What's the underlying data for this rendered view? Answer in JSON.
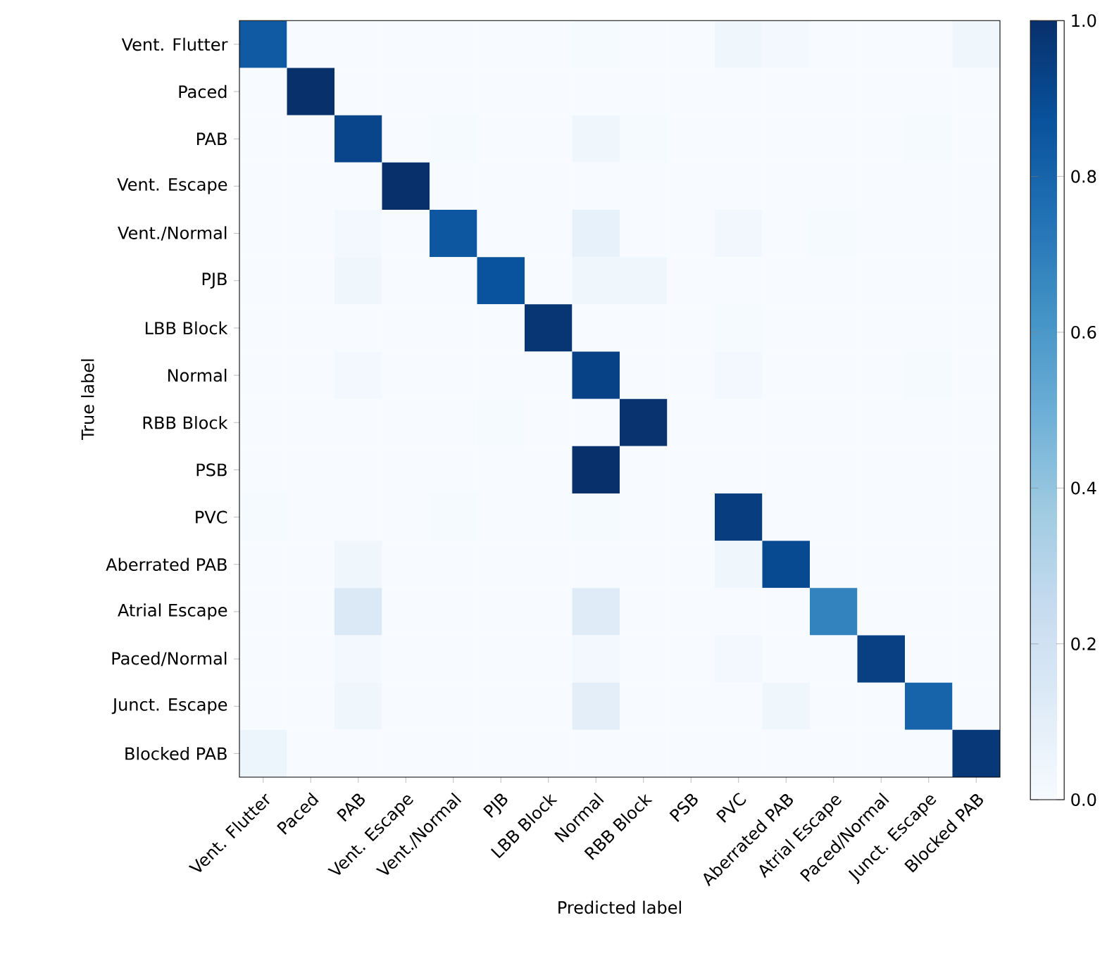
{
  "chart_data": {
    "type": "heatmap",
    "xlabel": "Predicted label",
    "ylabel": "True label",
    "categories": [
      "Vent. Flutter",
      "Paced",
      "PAB",
      "Vent. Escape",
      "Vent./Normal",
      "PJB",
      "LBB Block",
      "Normal",
      "RBB Block",
      "PSB",
      "PVC",
      "Aberrated PAB",
      "Atrial Escape",
      "Paced/Normal",
      "Junct. Escape",
      "Blocked PAB"
    ],
    "y_categories": [
      "Vent. Flutter",
      "Paced",
      "PAB",
      "Vent. Escape",
      "Vent./Normal",
      "PJB",
      "LBB Block",
      "Normal",
      "RBB Block",
      "PSB",
      "PVC",
      "Aberrated PAB",
      "Atrial Escape",
      "Paced/Normal",
      "Junct. Escape",
      "Blocked PAB"
    ],
    "cells": [
      [
        0.84,
        0,
        0,
        0,
        0,
        0,
        0,
        0.01,
        0,
        0,
        0.04,
        0.02,
        0,
        0,
        0,
        0.04
      ],
      [
        0,
        1.0,
        0,
        0,
        0,
        0,
        0,
        0,
        0,
        0,
        0,
        0,
        0,
        0,
        0,
        0
      ],
      [
        0,
        0,
        0.92,
        0,
        0.01,
        0,
        0,
        0.04,
        0.01,
        0,
        0,
        0,
        0,
        0,
        0.01,
        0
      ],
      [
        0,
        0,
        0,
        1.0,
        0,
        0,
        0,
        0,
        0,
        0,
        0,
        0,
        0,
        0,
        0,
        0
      ],
      [
        0,
        0,
        0.02,
        0,
        0.85,
        0,
        0,
        0.08,
        0,
        0,
        0.03,
        0,
        0.01,
        0,
        0,
        0
      ],
      [
        0,
        0,
        0.04,
        0,
        0,
        0.87,
        0,
        0.04,
        0.04,
        0,
        0,
        0,
        0,
        0,
        0,
        0
      ],
      [
        0,
        0,
        0,
        0,
        0,
        0,
        0.98,
        0,
        0,
        0,
        0.01,
        0,
        0,
        0,
        0,
        0
      ],
      [
        0,
        0,
        0.02,
        0,
        0,
        0,
        0,
        0.93,
        0,
        0,
        0.02,
        0,
        0,
        0,
        0.01,
        0
      ],
      [
        0,
        0,
        0,
        0,
        0,
        0.01,
        0,
        0,
        0.99,
        0,
        0,
        0,
        0,
        0,
        0,
        0
      ],
      [
        0,
        0,
        0,
        0,
        0,
        0,
        0,
        1.0,
        0,
        0,
        0,
        0,
        0,
        0,
        0,
        0
      ],
      [
        0.01,
        0,
        0,
        0,
        0.01,
        0,
        0,
        0.01,
        0,
        0,
        0.95,
        0,
        0,
        0,
        0,
        0
      ],
      [
        0,
        0,
        0.04,
        0,
        0,
        0,
        0,
        0,
        0,
        0,
        0.04,
        0.9,
        0,
        0,
        0,
        0
      ],
      [
        0,
        0,
        0.14,
        0,
        0,
        0,
        0,
        0.12,
        0,
        0,
        0,
        0,
        0.68,
        0,
        0,
        0
      ],
      [
        0,
        0,
        0.02,
        0,
        0,
        0,
        0,
        0.02,
        0,
        0,
        0.02,
        0,
        0,
        0.94,
        0,
        0
      ],
      [
        0,
        0,
        0.04,
        0,
        0,
        0,
        0,
        0.1,
        0,
        0,
        0,
        0.04,
        0,
        0,
        0.8,
        0
      ],
      [
        0.05,
        0,
        0,
        0,
        0,
        0,
        0,
        0,
        0,
        0,
        0,
        0,
        0,
        0,
        0,
        0.97
      ]
    ],
    "clim": [
      0,
      1
    ],
    "cticks": [
      {
        "value": 0,
        "label": "0.0"
      },
      {
        "value": 0.2,
        "label": "0.2"
      },
      {
        "value": 0.4,
        "label": "0.4"
      },
      {
        "value": 0.6,
        "label": "0.6"
      },
      {
        "value": 0.8,
        "label": "0.8"
      },
      {
        "value": 1,
        "label": "1.0"
      }
    ]
  }
}
